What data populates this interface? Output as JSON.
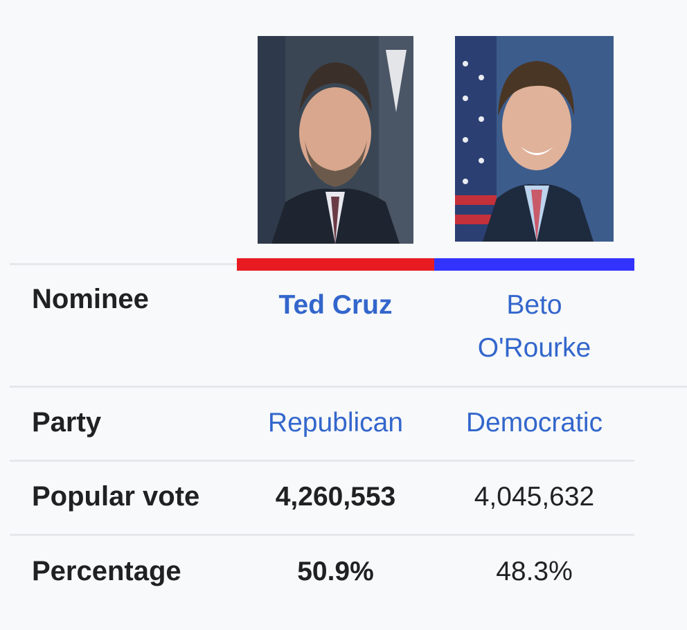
{
  "candidates": [
    {
      "name": "Ted Cruz",
      "party": "Republican",
      "popular_vote": "4,260,553",
      "percentage": "50.9%",
      "party_color": "#e81b23",
      "winner": true,
      "portrait_icon": "person-portrait-icon"
    },
    {
      "name_lines": [
        "Beto",
        "O'Rourke"
      ],
      "party": "Democratic",
      "popular_vote": "4,045,632",
      "percentage": "48.3%",
      "party_color": "#3333ff",
      "winner": false,
      "portrait_icon": "person-portrait-icon"
    }
  ],
  "rows": {
    "nominee_label": "Nominee",
    "party_label": "Party",
    "popular_vote_label": "Popular vote",
    "percentage_label": "Percentage"
  },
  "colors": {
    "background": "#f8f9fa",
    "link": "#3366cc",
    "text": "#202122",
    "divider": "#e6e7ea"
  }
}
